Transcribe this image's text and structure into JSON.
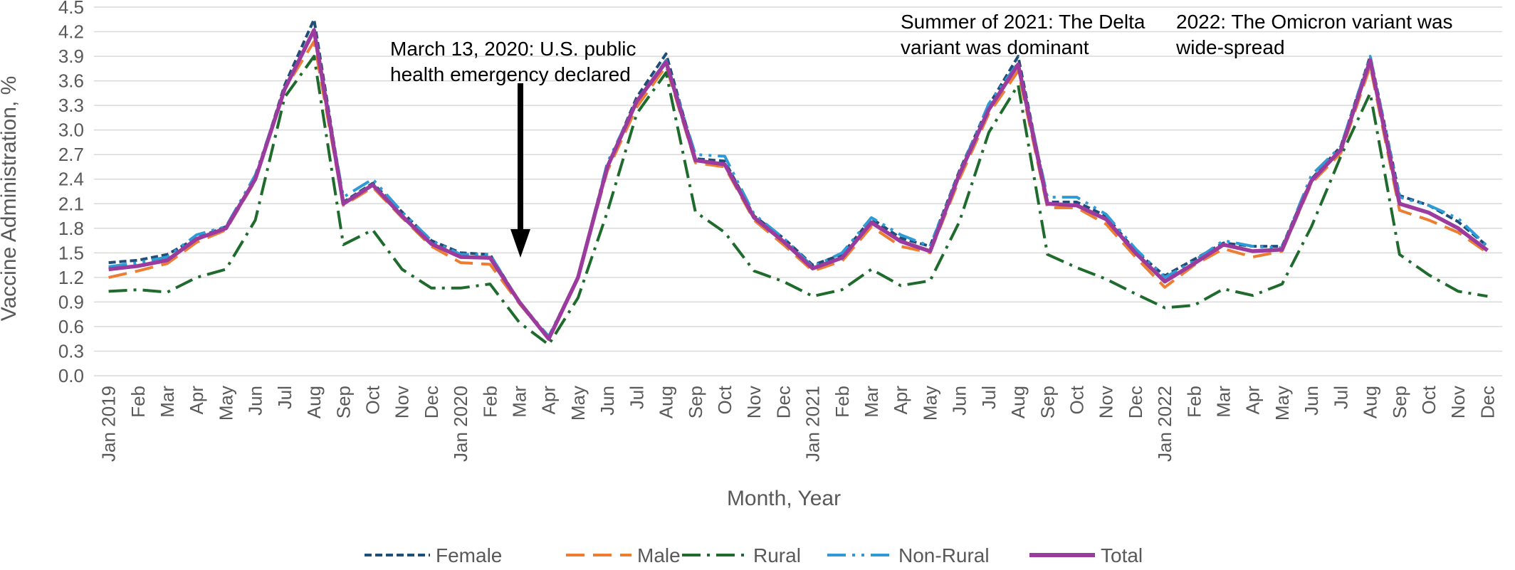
{
  "chart_data": {
    "type": "line",
    "xlabel": "Month, Year",
    "ylabel": "Vaccine Administration, %",
    "ylim": [
      0,
      4.5
    ],
    "yticks": [
      "0.0",
      "0.3",
      "0.6",
      "0.9",
      "1.2",
      "1.5",
      "1.8",
      "2.1",
      "2.4",
      "2.7",
      "3.0",
      "3.3",
      "3.6",
      "3.9",
      "4.2",
      "4.5"
    ],
    "grid": true,
    "legend_position": "bottom",
    "categories": [
      "Jan 2019",
      "Feb",
      "Mar",
      "Apr",
      "May",
      "Jun",
      "Jul",
      "Aug",
      "Sep",
      "Oct",
      "Nov",
      "Dec",
      "Jan 2020",
      "Feb",
      "Mar",
      "Apr",
      "May",
      "Jun",
      "Jul",
      "Aug",
      "Sep",
      "Oct",
      "Nov",
      "Dec",
      "Jan 2021",
      "Feb",
      "Mar",
      "Apr",
      "May",
      "Jun",
      "Jul",
      "Aug",
      "Sep",
      "Oct",
      "Nov",
      "Dec",
      "Jan 2022",
      "Feb",
      "Mar",
      "Apr",
      "May",
      "Jun",
      "Jul",
      "Aug",
      "Sep",
      "Oct",
      "Nov",
      "Dec"
    ],
    "series": [
      {
        "name": "Female",
        "color": "#1f4e79",
        "dash": "10,5",
        "values": [
          1.38,
          1.41,
          1.48,
          1.68,
          1.82,
          2.4,
          3.55,
          4.35,
          2.12,
          2.35,
          2.0,
          1.65,
          1.5,
          1.48,
          0.9,
          0.45,
          1.2,
          2.55,
          3.4,
          3.93,
          2.65,
          2.62,
          1.95,
          1.68,
          1.35,
          1.48,
          1.92,
          1.68,
          1.58,
          2.5,
          3.3,
          3.9,
          2.12,
          2.12,
          1.95,
          1.52,
          1.22,
          1.42,
          1.62,
          1.58,
          1.58,
          2.4,
          2.8,
          3.9,
          2.2,
          2.08,
          1.88,
          1.58
        ]
      },
      {
        "name": "Male",
        "color": "#ed7d31",
        "dash": "26,12",
        "values": [
          1.2,
          1.28,
          1.37,
          1.63,
          1.78,
          2.38,
          3.5,
          4.08,
          2.08,
          2.3,
          1.93,
          1.58,
          1.38,
          1.36,
          0.88,
          0.45,
          1.2,
          2.5,
          3.28,
          3.78,
          2.6,
          2.55,
          1.9,
          1.6,
          1.28,
          1.4,
          1.82,
          1.58,
          1.5,
          2.4,
          3.2,
          3.72,
          2.05,
          2.05,
          1.85,
          1.45,
          1.08,
          1.35,
          1.55,
          1.45,
          1.52,
          2.35,
          2.72,
          3.78,
          2.02,
          1.9,
          1.75,
          1.5
        ]
      },
      {
        "name": "Rural",
        "color": "#1e6b2d",
        "dash": "26,9,4,9",
        "values": [
          1.03,
          1.05,
          1.02,
          1.2,
          1.3,
          1.9,
          3.4,
          3.9,
          1.6,
          1.78,
          1.3,
          1.07,
          1.07,
          1.12,
          0.65,
          0.38,
          0.95,
          2.0,
          3.2,
          3.7,
          2.0,
          1.75,
          1.28,
          1.15,
          0.97,
          1.05,
          1.3,
          1.1,
          1.16,
          1.88,
          2.97,
          3.55,
          1.48,
          1.32,
          1.18,
          1.0,
          0.83,
          0.86,
          1.06,
          0.98,
          1.12,
          1.82,
          2.68,
          3.45,
          1.48,
          1.23,
          1.03,
          0.97
        ]
      },
      {
        "name": "Non-Rural",
        "color": "#2e9bd6",
        "dash": "26,9,4,9,4,9",
        "values": [
          1.33,
          1.38,
          1.45,
          1.72,
          1.82,
          2.45,
          3.5,
          4.2,
          2.18,
          2.4,
          2.0,
          1.65,
          1.48,
          1.48,
          0.9,
          0.48,
          1.2,
          2.6,
          3.35,
          3.85,
          2.7,
          2.68,
          1.97,
          1.68,
          1.33,
          1.5,
          1.93,
          1.72,
          1.58,
          2.48,
          3.32,
          3.82,
          2.18,
          2.18,
          1.97,
          1.55,
          1.2,
          1.4,
          1.65,
          1.58,
          1.56,
          2.45,
          2.8,
          3.9,
          2.18,
          2.08,
          1.92,
          1.58
        ]
      },
      {
        "name": "Total",
        "color": "#9b3b9e",
        "dash": "",
        "values": [
          1.3,
          1.34,
          1.41,
          1.67,
          1.8,
          2.4,
          3.5,
          4.22,
          2.1,
          2.33,
          1.95,
          1.61,
          1.45,
          1.44,
          0.9,
          0.45,
          1.2,
          2.55,
          3.35,
          3.83,
          2.63,
          2.58,
          1.93,
          1.64,
          1.31,
          1.44,
          1.87,
          1.64,
          1.52,
          2.46,
          3.25,
          3.8,
          2.1,
          2.08,
          1.91,
          1.5,
          1.15,
          1.37,
          1.6,
          1.52,
          1.54,
          2.38,
          2.76,
          3.85,
          2.1,
          1.99,
          1.8,
          1.53
        ]
      }
    ],
    "annotations": [
      {
        "lines": [
          "March 13, 2020: U.S. public",
          "health emergency declared"
        ],
        "arrow": true
      },
      {
        "lines": [
          "Summer of 2021: The Delta",
          "variant was dominant"
        ],
        "arrow": false
      },
      {
        "lines": [
          "2022: The Omicron variant was",
          "wide-spread"
        ],
        "arrow": false
      }
    ]
  }
}
